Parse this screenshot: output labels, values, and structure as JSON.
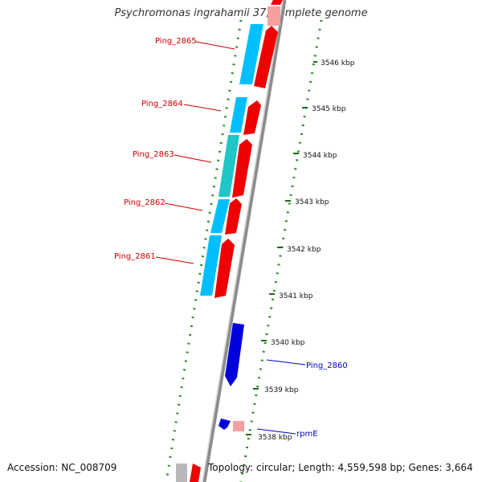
{
  "title": "Psychromonas ingrahamii 37, complete genome",
  "footer": {
    "accession": "Accession: NC_008709",
    "summary": "Topology: circular; Length: 4,559,598 bp; Genes: 3,664"
  },
  "axis": {
    "ticks": [
      {
        "kbp": 3546,
        "label": "3546 kbp"
      },
      {
        "kbp": 3545,
        "label": "3545 kbp"
      },
      {
        "kbp": 3544,
        "label": "3544 kbp"
      },
      {
        "kbp": 3543,
        "label": "3543 kbp"
      },
      {
        "kbp": 3542,
        "label": "3542 kbp"
      },
      {
        "kbp": 3541,
        "label": "3541 kbp"
      },
      {
        "kbp": 3540,
        "label": "3540 kbp"
      },
      {
        "kbp": 3539,
        "label": "3539 kbp"
      },
      {
        "kbp": 3538,
        "label": "3538 kbp"
      }
    ]
  },
  "genes": [
    {
      "name": "Ping_2865",
      "strand": "reverse",
      "label_color": "#cc0000"
    },
    {
      "name": "Ping_2864",
      "strand": "reverse",
      "label_color": "#cc0000"
    },
    {
      "name": "Ping_2863",
      "strand": "reverse",
      "label_color": "#cc0000"
    },
    {
      "name": "Ping_2862",
      "strand": "reverse",
      "label_color": "#cc0000"
    },
    {
      "name": "Ping_2861",
      "strand": "reverse",
      "label_color": "#cc0000"
    },
    {
      "name": "Ping_2860",
      "strand": "forward",
      "label_color": "#0000cc"
    },
    {
      "name": "rpmE",
      "strand": "forward",
      "label_color": "#0000cc"
    }
  ],
  "colors": {
    "backbone": "#8c8c8c",
    "cds_reverse": "#ee0000",
    "cds_forward": "#0000dd",
    "orf_track": "#00bfff",
    "orf_track_alt": "#1fc6c6",
    "rna_feature": "#f4a0a0",
    "gc_dots": "#2a8a2a"
  }
}
